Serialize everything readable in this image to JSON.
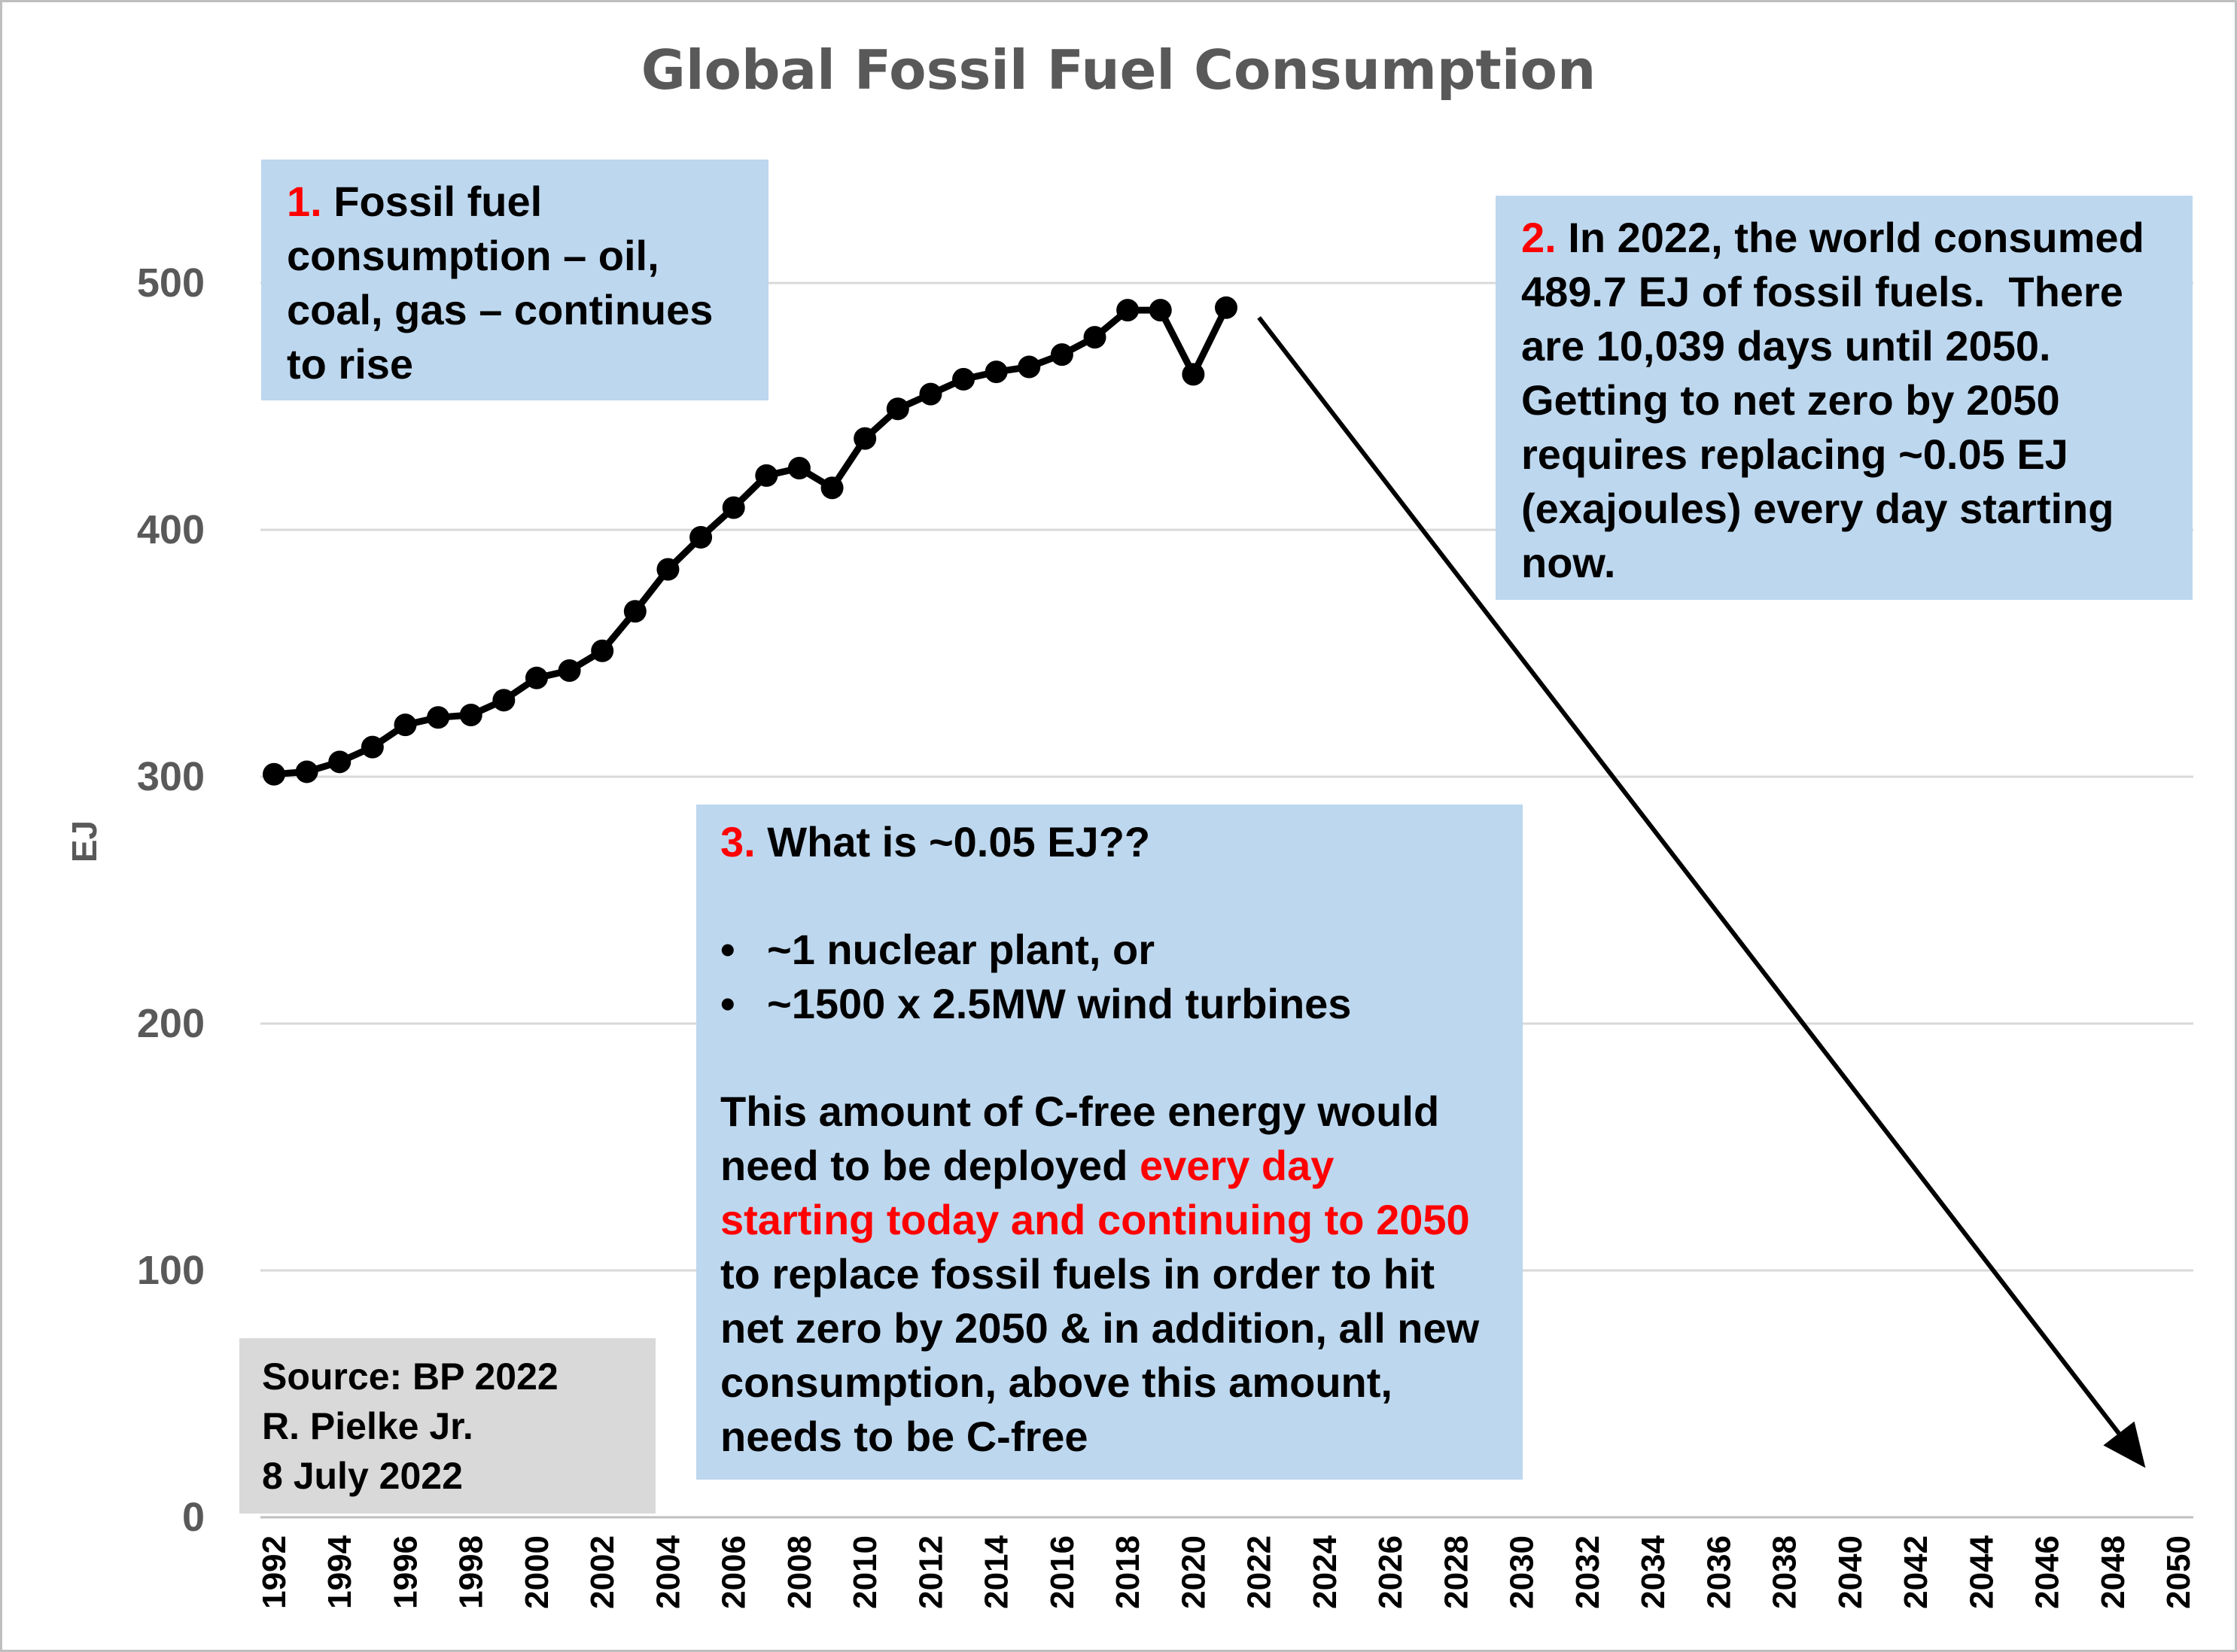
{
  "chart_data": {
    "type": "line",
    "title": "Global Fossil Fuel Consumption",
    "xlabel": "",
    "ylabel": "EJ",
    "ylim": [
      0,
      550
    ],
    "yticks": [
      0,
      100,
      200,
      300,
      400,
      500
    ],
    "xlim": [
      1992,
      2050
    ],
    "xticks": [
      1992,
      1994,
      1996,
      1998,
      2000,
      2002,
      2004,
      2006,
      2008,
      2010,
      2012,
      2014,
      2016,
      2018,
      2020,
      2022,
      2024,
      2026,
      2028,
      2030,
      2032,
      2034,
      2036,
      2038,
      2040,
      2042,
      2044,
      2046,
      2048,
      2050
    ],
    "grid": true,
    "legend": "none",
    "series": [
      {
        "name": "Fossil fuel consumption",
        "x": [
          1992,
          1993,
          1994,
          1995,
          1996,
          1997,
          1998,
          1999,
          2000,
          2001,
          2002,
          2003,
          2004,
          2005,
          2006,
          2007,
          2008,
          2009,
          2010,
          2011,
          2012,
          2013,
          2014,
          2015,
          2016,
          2017,
          2018,
          2019,
          2020,
          2021
        ],
        "values": [
          301,
          302,
          306,
          312,
          321,
          324,
          325,
          331,
          340,
          343,
          351,
          367,
          384,
          397,
          409,
          422,
          425,
          417,
          437,
          449,
          455,
          461,
          464,
          466,
          471,
          478,
          489,
          489,
          463,
          490
        ],
        "color": "#000000"
      }
    ],
    "arrow": {
      "from": [
        2022,
        486
      ],
      "to": [
        2049,
        20
      ],
      "color": "#000000"
    }
  },
  "annotations": {
    "note1": {
      "number": "1.",
      "text": "Fossil fuel consumption – oil, coal, gas – continues to rise"
    },
    "note2": {
      "number": "2.",
      "text": "In 2022, the world consumed 489.7 EJ of fossil fuels.  There are 10,039 days until 2050. Getting to net zero by 2050 requires replacing ~0.05 EJ (exajoules) every day starting now."
    },
    "note3": {
      "number": "3.",
      "heading": "What is ~0.05 EJ??",
      "bullet_glyph": "•",
      "bullets": [
        "~1 nuclear plant, or",
        "~1500 x 2.5MW wind turbines"
      ],
      "para_before": "This amount of C-free energy would need to be deployed ",
      "para_highlight": "every day starting today and continuing to 2050",
      "para_after": " to replace fossil fuels in order to hit net zero by 2050 & in addition, all new consumption, above this amount, needs to be C-free"
    }
  },
  "source": {
    "line1": "Source: BP 2022",
    "line2": "R. Pielke Jr.",
    "line3": "8 July 2022"
  },
  "colors": {
    "annotation_bg": "#bdd7ee",
    "source_bg": "#d9d9d9",
    "highlight": "#ff0000",
    "axis_text": "#595959",
    "grid": "#d9d9d9"
  }
}
